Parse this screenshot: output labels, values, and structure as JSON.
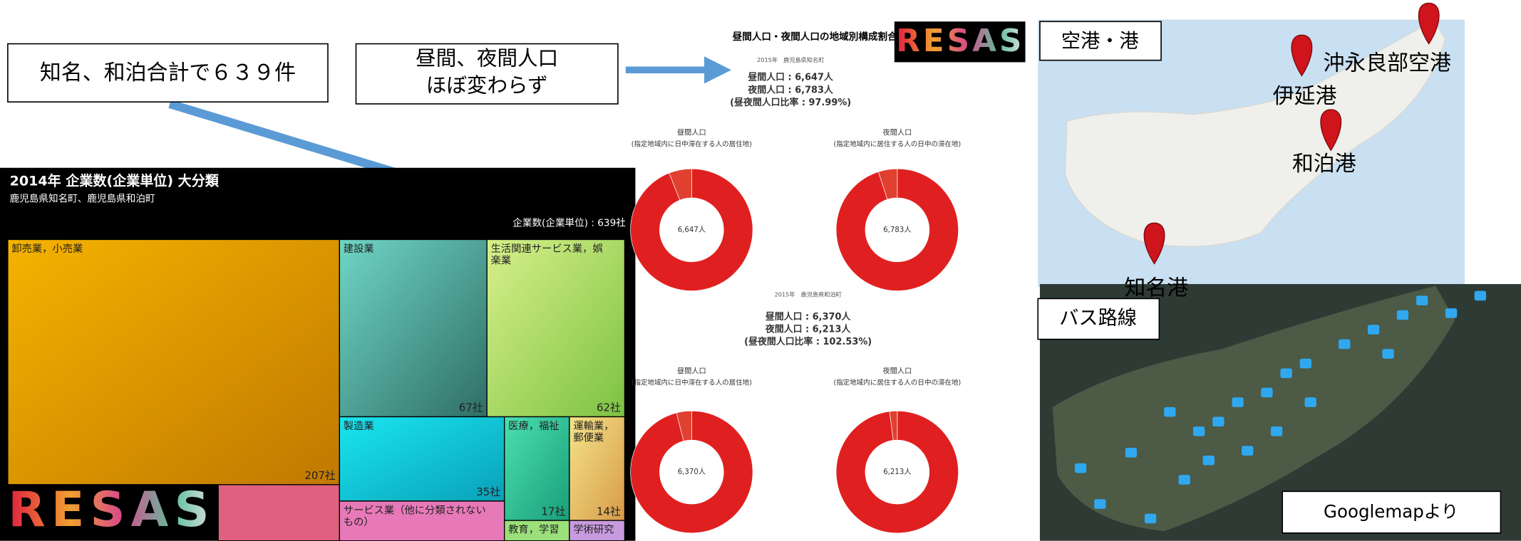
{
  "callouts": {
    "left": "知名、和泊合計で６３９件",
    "right": [
      "昼間、夜間人口",
      "ほぼ変わらず"
    ]
  },
  "treemap": {
    "title": "2014年 企業数(企業単位) 大分類",
    "subtitle": "鹿児島県知名町、鹿児島県和泊町",
    "total": "企業数(企業単位) : 639社",
    "logo": "RESAS",
    "cells": [
      {
        "name": [
          "卸売業，小売業"
        ],
        "value": 207,
        "value_label": "207社"
      },
      {
        "name": [
          "建設業"
        ],
        "value": 67,
        "value_label": "67社"
      },
      {
        "name": [
          "生活関連サービス業，娯",
          "楽業"
        ],
        "value": 62,
        "value_label": "62社"
      },
      {
        "name": [
          "製造業"
        ],
        "value": 35,
        "value_label": "35社"
      },
      {
        "name": [
          "医療，福祉"
        ],
        "value": 17,
        "value_label": "17社"
      },
      {
        "name": [
          "運輸業，",
          "郵便業"
        ],
        "value": 14,
        "value_label": "14社"
      },
      {
        "name": [
          "サービス業（他に分類されない",
          "もの）"
        ]
      },
      {
        "name": [
          "教育，学習"
        ]
      },
      {
        "name": [
          "学術研究"
        ]
      }
    ]
  },
  "population": {
    "title": "昼間人口・夜間人口の地域別構成割合",
    "logo": "RESAS",
    "blocks": [
      {
        "area": "2015年　鹿児島県知名町",
        "lines": [
          "昼間人口 : 6,647人",
          "夜間人口 : 6,783人",
          "(昼夜間人口比率 : 97.99%)"
        ],
        "donuts": [
          {
            "title": "昼間人口",
            "subtitle": "(指定地域内に日中滞在する人の居住地)",
            "center": "6,647人",
            "shares": [
              94,
              6
            ]
          },
          {
            "title": "夜間人口",
            "subtitle": "(指定地域内に居住する人の日中の滞在地)",
            "center": "6,783人",
            "shares": [
              95,
              5
            ]
          }
        ]
      },
      {
        "area": "2015年　鹿児島県和泊町",
        "lines": [
          "昼間人口 : 6,370人",
          "夜間人口 : 6,213人",
          "(昼夜間人口比率 : 102.53%)"
        ],
        "donuts": [
          {
            "title": "昼間人口",
            "subtitle": "(指定地域内に日中滞在する人の居住地)",
            "center": "6,370人",
            "shares": [
              96,
              4
            ]
          },
          {
            "title": "夜間人口",
            "subtitle": "(指定地域内に居住する人の日中の滞在地)",
            "center": "6,213人",
            "shares": [
              98,
              2
            ]
          }
        ]
      }
    ]
  },
  "map": {
    "label": "空港・港",
    "places": [
      "沖永良部空港",
      "伊延港",
      "和泊港",
      "知名港"
    ],
    "bus_label": "バス路線",
    "source": "Googlemapより"
  }
}
